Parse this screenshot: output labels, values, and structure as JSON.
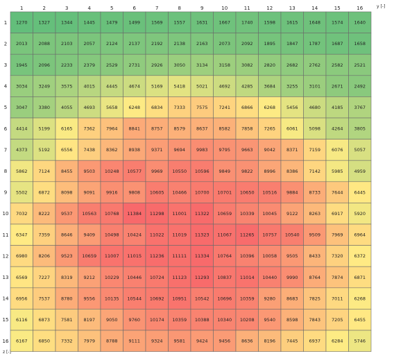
{
  "chart_data": {
    "type": "heatmap",
    "xlabel": "y [-]",
    "ylabel": "z [-]",
    "columns": [
      "1",
      "2",
      "3",
      "4",
      "5",
      "6",
      "7",
      "8",
      "9",
      "10",
      "11",
      "12",
      "13",
      "14",
      "15",
      "16"
    ],
    "rows": [
      "1",
      "2",
      "3",
      "4",
      "5",
      "6",
      "7",
      "8",
      "9",
      "10",
      "11",
      "12",
      "13",
      "14",
      "15",
      "16"
    ],
    "color_scale": {
      "low": "#63be7b",
      "mid": "#ffeb84",
      "high": "#f8696b"
    },
    "values": [
      [
        1270,
        1327,
        1344,
        1445,
        1479,
        1499,
        1569,
        1557,
        1631,
        1667,
        1740,
        1598,
        1615,
        1648,
        1574,
        1640
      ],
      [
        2013,
        2088,
        2103,
        2057,
        2124,
        2137,
        2192,
        2138,
        2163,
        2073,
        2092,
        1895,
        1847,
        1787,
        1687,
        1658
      ],
      [
        1945,
        2096,
        2233,
        2379,
        2529,
        2731,
        2926,
        3050,
        3134,
        3158,
        3082,
        2820,
        2682,
        2762,
        2582,
        2521
      ],
      [
        3034,
        3249,
        3575,
        4015,
        4445,
        4674,
        5169,
        5418,
        5021,
        4692,
        4285,
        3684,
        3255,
        3101,
        2671,
        2492
      ],
      [
        3047,
        3380,
        4055,
        4693,
        5658,
        6248,
        6834,
        7333,
        7575,
        7241,
        6866,
        6268,
        5456,
        4680,
        4185,
        3767
      ],
      [
        4414,
        5199,
        6165,
        7362,
        7964,
        8841,
        8757,
        8579,
        8637,
        8582,
        7858,
        7265,
        6061,
        5098,
        4264,
        3805
      ],
      [
        4373,
        5192,
        6556,
        7438,
        8362,
        8938,
        9371,
        9694,
        9983,
        9795,
        9663,
        9042,
        8371,
        7159,
        6076,
        5057
      ],
      [
        5862,
        7124,
        8455,
        9503,
        10248,
        10577,
        9969,
        10550,
        10596,
        9849,
        9822,
        8996,
        8386,
        7142,
        5985,
        4959
      ],
      [
        5502,
        6872,
        8098,
        9091,
        9916,
        9808,
        10605,
        10466,
        10700,
        10701,
        10650,
        10516,
        9884,
        8733,
        7644,
        6445
      ],
      [
        7032,
        8222,
        9537,
        10563,
        10768,
        11384,
        11298,
        11001,
        11322,
        10659,
        10339,
        10045,
        9122,
        8263,
        6917,
        5920
      ],
      [
        6347,
        7359,
        8646,
        9409,
        10498,
        10424,
        11022,
        11019,
        11323,
        11067,
        11265,
        10757,
        10540,
        9509,
        7969,
        6964
      ],
      [
        6980,
        8206,
        9523,
        10659,
        11007,
        11015,
        11236,
        11111,
        11334,
        10764,
        10396,
        10058,
        9505,
        8433,
        7320,
        6372
      ],
      [
        6569,
        7227,
        8319,
        9212,
        10229,
        10446,
        10724,
        11123,
        11293,
        10837,
        11014,
        10440,
        9990,
        8764,
        7874,
        6871
      ],
      [
        6956,
        7537,
        8780,
        9556,
        10135,
        10544,
        10692,
        10951,
        10542,
        10696,
        10359,
        9280,
        8683,
        7825,
        7011,
        6268
      ],
      [
        6116,
        6873,
        7581,
        8197,
        9050,
        9760,
        10174,
        10359,
        10388,
        10340,
        10208,
        9540,
        8598,
        7843,
        7205,
        6455
      ],
      [
        6167,
        6850,
        7332,
        7979,
        8788,
        9111,
        9324,
        9581,
        9424,
        9456,
        8636,
        8196,
        7445,
        6937,
        6284,
        5746
      ]
    ]
  }
}
